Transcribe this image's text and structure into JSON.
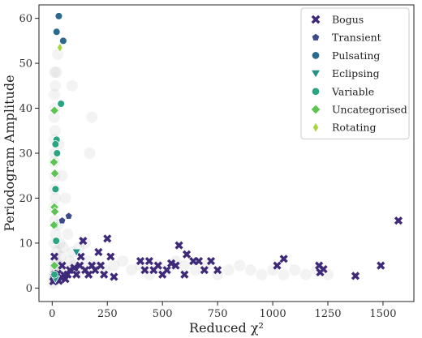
{
  "chart_data": {
    "type": "scatter",
    "xlabel": "Reduced χ²",
    "ylabel": "Periodogram Amplitude",
    "xlim": [
      -60,
      1640
    ],
    "ylim": [
      -3,
      63
    ],
    "xticks": [
      0,
      250,
      500,
      750,
      1000,
      1250,
      1500
    ],
    "yticks": [
      0,
      10,
      20,
      30,
      40,
      50,
      60
    ],
    "grid": false,
    "legend_position": "top-right",
    "background_cloud": {
      "color": "#9a9a9a",
      "description_points": [
        [
          5,
          1
        ],
        [
          8,
          2
        ],
        [
          10,
          3
        ],
        [
          12,
          4
        ],
        [
          15,
          5
        ],
        [
          18,
          6
        ],
        [
          20,
          8
        ],
        [
          10,
          10
        ],
        [
          15,
          12
        ],
        [
          12,
          15
        ],
        [
          8,
          18
        ],
        [
          14,
          20
        ],
        [
          10,
          22
        ],
        [
          12,
          25
        ],
        [
          9,
          28
        ],
        [
          11,
          30
        ],
        [
          10,
          33
        ],
        [
          13,
          35
        ],
        [
          9,
          38
        ],
        [
          12,
          40
        ],
        [
          10,
          43
        ],
        [
          14,
          45
        ],
        [
          11,
          48
        ],
        [
          30,
          5
        ],
        [
          40,
          7
        ],
        [
          60,
          4
        ],
        [
          80,
          6
        ],
        [
          100,
          5
        ],
        [
          130,
          4
        ],
        [
          160,
          6
        ],
        [
          200,
          5
        ],
        [
          240,
          4
        ],
        [
          280,
          5
        ],
        [
          320,
          6
        ],
        [
          360,
          4
        ],
        [
          400,
          5
        ],
        [
          440,
          3
        ],
        [
          480,
          5
        ],
        [
          520,
          4
        ],
        [
          560,
          6
        ],
        [
          600,
          5
        ],
        [
          650,
          4
        ],
        [
          700,
          5
        ],
        [
          750,
          3
        ],
        [
          800,
          4
        ],
        [
          850,
          5
        ],
        [
          900,
          4
        ],
        [
          950,
          3
        ],
        [
          1000,
          4
        ],
        [
          1050,
          3
        ],
        [
          1100,
          4
        ],
        [
          1150,
          3
        ],
        [
          1200,
          4
        ],
        [
          1250,
          3
        ],
        [
          25,
          14
        ],
        [
          35,
          10
        ],
        [
          50,
          9
        ],
        [
          70,
          12
        ],
        [
          90,
          8
        ],
        [
          120,
          9
        ],
        [
          150,
          10
        ],
        [
          180,
          38
        ],
        [
          90,
          45
        ],
        [
          170,
          30
        ],
        [
          60,
          20
        ],
        [
          45,
          25
        ],
        [
          30,
          32
        ],
        [
          20,
          48
        ],
        [
          25,
          52
        ]
      ]
    },
    "series": [
      {
        "name": "Bogus",
        "marker": "x",
        "color": "#3f2a7a",
        "points": [
          [
            5,
            1.5
          ],
          [
            10,
            2
          ],
          [
            8,
            2.5
          ],
          [
            15,
            1.8
          ],
          [
            12,
            3
          ],
          [
            20,
            2.2
          ],
          [
            30,
            1.6
          ],
          [
            40,
            2.4
          ],
          [
            25,
            3.2
          ],
          [
            55,
            2.8
          ],
          [
            10,
            7
          ],
          [
            45,
            5
          ],
          [
            70,
            3
          ],
          [
            60,
            2
          ],
          [
            80,
            4
          ],
          [
            100,
            4.5
          ],
          [
            110,
            3
          ],
          [
            125,
            5
          ],
          [
            140,
            10.5
          ],
          [
            130,
            7
          ],
          [
            150,
            4
          ],
          [
            165,
            3
          ],
          [
            180,
            5
          ],
          [
            195,
            4
          ],
          [
            210,
            8
          ],
          [
            220,
            5
          ],
          [
            235,
            3
          ],
          [
            250,
            11
          ],
          [
            265,
            7
          ],
          [
            280,
            2.5
          ],
          [
            400,
            6
          ],
          [
            420,
            4
          ],
          [
            440,
            6
          ],
          [
            460,
            4
          ],
          [
            480,
            5
          ],
          [
            500,
            3
          ],
          [
            520,
            4
          ],
          [
            540,
            5.5
          ],
          [
            560,
            5
          ],
          [
            575,
            9.5
          ],
          [
            600,
            3
          ],
          [
            610,
            7.5
          ],
          [
            640,
            6
          ],
          [
            665,
            6
          ],
          [
            690,
            4
          ],
          [
            720,
            6
          ],
          [
            750,
            4
          ],
          [
            1020,
            5
          ],
          [
            1050,
            6.5
          ],
          [
            1210,
            5
          ],
          [
            1215,
            3.5
          ],
          [
            1230,
            4.2
          ],
          [
            1375,
            2.7
          ],
          [
            1490,
            5
          ],
          [
            1570,
            15
          ]
        ]
      },
      {
        "name": "Transient",
        "marker": "pentagon",
        "color": "#3d4a8c",
        "points": [
          [
            75,
            16
          ],
          [
            45,
            15
          ]
        ]
      },
      {
        "name": "Pulsating",
        "marker": "circle",
        "color": "#2b6a8c",
        "points": [
          [
            30,
            60.5
          ],
          [
            20,
            57
          ],
          [
            50,
            55
          ]
        ]
      },
      {
        "name": "Eclipsing",
        "marker": "triangle-down",
        "color": "#23938a",
        "points": [
          [
            110,
            8
          ],
          [
            15,
            2
          ]
        ]
      },
      {
        "name": "Variable",
        "marker": "circle",
        "color": "#2aa582",
        "points": [
          [
            40,
            41
          ],
          [
            20,
            33
          ],
          [
            15,
            32
          ],
          [
            22,
            30
          ],
          [
            15,
            22
          ],
          [
            12,
            14
          ],
          [
            18,
            10.5
          ],
          [
            10,
            3
          ]
        ]
      },
      {
        "name": "Uncategorised",
        "marker": "diamond",
        "color": "#5cc552",
        "points": [
          [
            10,
            39.5
          ],
          [
            8,
            28
          ],
          [
            12,
            25.5
          ],
          [
            10,
            18
          ],
          [
            12,
            17
          ],
          [
            8,
            14
          ],
          [
            10,
            5
          ]
        ]
      },
      {
        "name": "Rotating",
        "marker": "thin-diamond",
        "color": "#a5d73e",
        "points": [
          [
            35,
            53.5
          ]
        ]
      }
    ]
  }
}
